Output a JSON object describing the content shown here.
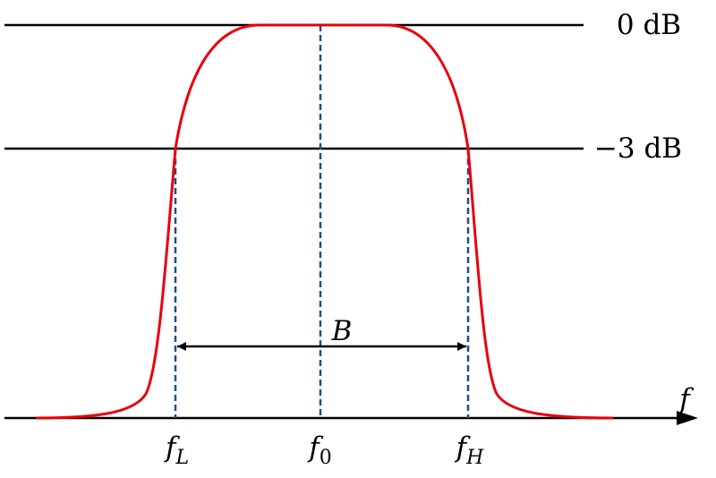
{
  "levels": {
    "top": "0 dB",
    "half_power": "−3 dB"
  },
  "bandwidth_label": "B",
  "axis_label": "f",
  "frequencies": [
    {
      "main": "f",
      "sub": "L"
    },
    {
      "main": "f",
      "sub": "0"
    },
    {
      "main": "f",
      "sub": "H"
    }
  ]
}
